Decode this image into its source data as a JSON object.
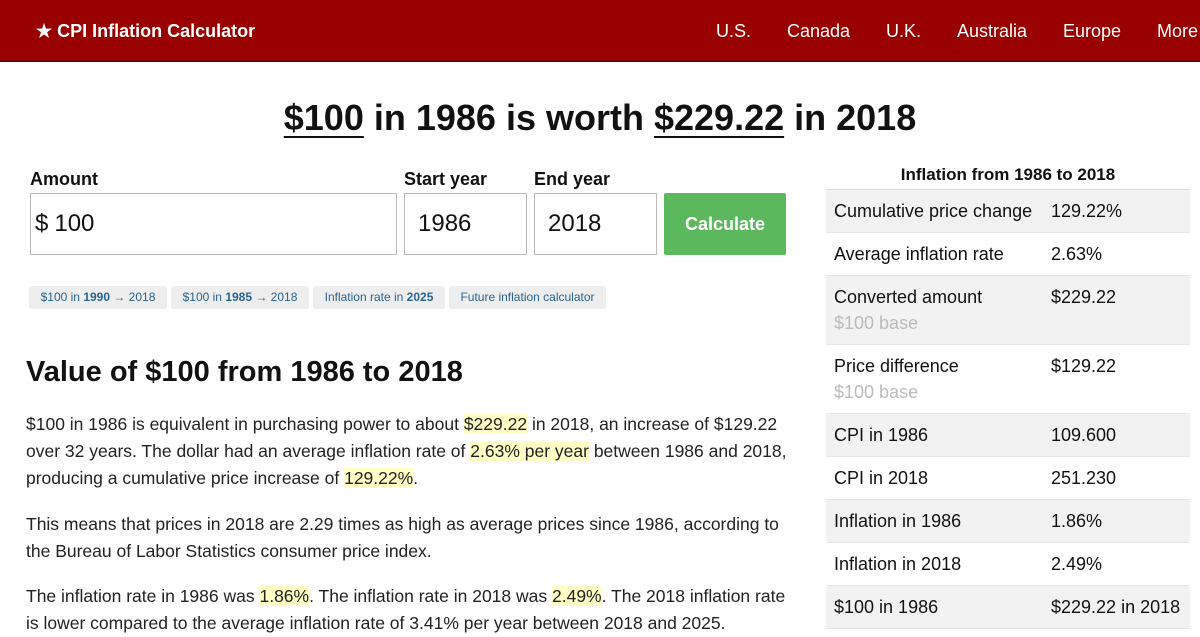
{
  "header": {
    "brand_icon": "star-icon",
    "brand": "CPI Inflation Calculator",
    "nav": [
      "U.S.",
      "Canada",
      "U.K.",
      "Australia",
      "Europe",
      "More"
    ]
  },
  "headline": {
    "amount": "$100",
    "mid1": "in 1986 is worth",
    "result": "$229.22",
    "mid2": "in 2018"
  },
  "form": {
    "amount_label": "Amount",
    "currency": "$",
    "amount_value": "100",
    "start_label": "Start year",
    "start_value": "1986",
    "end_label": "End year",
    "end_value": "2018",
    "calculate": "Calculate"
  },
  "quick_links": [
    {
      "pre": "$100 in ",
      "bold": "1990",
      "post": " → 2018"
    },
    {
      "pre": "$100 in ",
      "bold": "1985",
      "post": " → 2018"
    },
    {
      "pre": "Inflation rate in ",
      "bold": "2025",
      "post": ""
    },
    {
      "pre": "Future inflation calculator",
      "bold": "",
      "post": ""
    }
  ],
  "article": {
    "heading": "Value of $100 from 1986 to 2018",
    "p1": [
      "$100 in 1986 is equivalent in purchasing power to about ",
      "$229.22",
      " in 2018, an increase of $129.22 over 32 years. The dollar had an average inflation rate of ",
      "2.63% per year",
      " between 1986 and 2018, producing a cumulative price increase of ",
      "129.22%",
      "."
    ],
    "p2": "This means that prices in 2018 are 2.29 times as high as average prices since 1986, according to the Bureau of Labor Statistics consumer price index.",
    "p3": [
      "The inflation rate in 1986 was ",
      "1.86%",
      ". The inflation rate in 2018 was ",
      "2.49%",
      ". The 2018 inflation rate is lower compared to the average inflation rate of 3.41% per year between 2018 and 2025."
    ]
  },
  "sidebar": {
    "title": "Inflation from 1986 to 2018",
    "rows": [
      {
        "label": "Cumulative price change",
        "value": "129.22%",
        "sub": ""
      },
      {
        "label": "Average inflation rate",
        "value": "2.63%",
        "sub": ""
      },
      {
        "label": "Converted amount",
        "value": "$229.22",
        "sub": "$100 base"
      },
      {
        "label": "Price difference",
        "value": "$129.22",
        "sub": "$100 base"
      },
      {
        "label": "CPI in 1986",
        "value": "109.600",
        "sub": ""
      },
      {
        "label": "CPI in 2018",
        "value": "251.230",
        "sub": ""
      },
      {
        "label": "Inflation in 1986",
        "value": "1.86%",
        "sub": ""
      },
      {
        "label": "Inflation in 2018",
        "value": "2.49%",
        "sub": ""
      },
      {
        "label": "$100 in 1986",
        "value": "$229.22 in 2018",
        "sub": ""
      }
    ]
  },
  "colors": {
    "header_bg": "#990000",
    "button_bg": "#5cb85c",
    "link": "#2a6496",
    "highlight": "#ffffc6"
  }
}
